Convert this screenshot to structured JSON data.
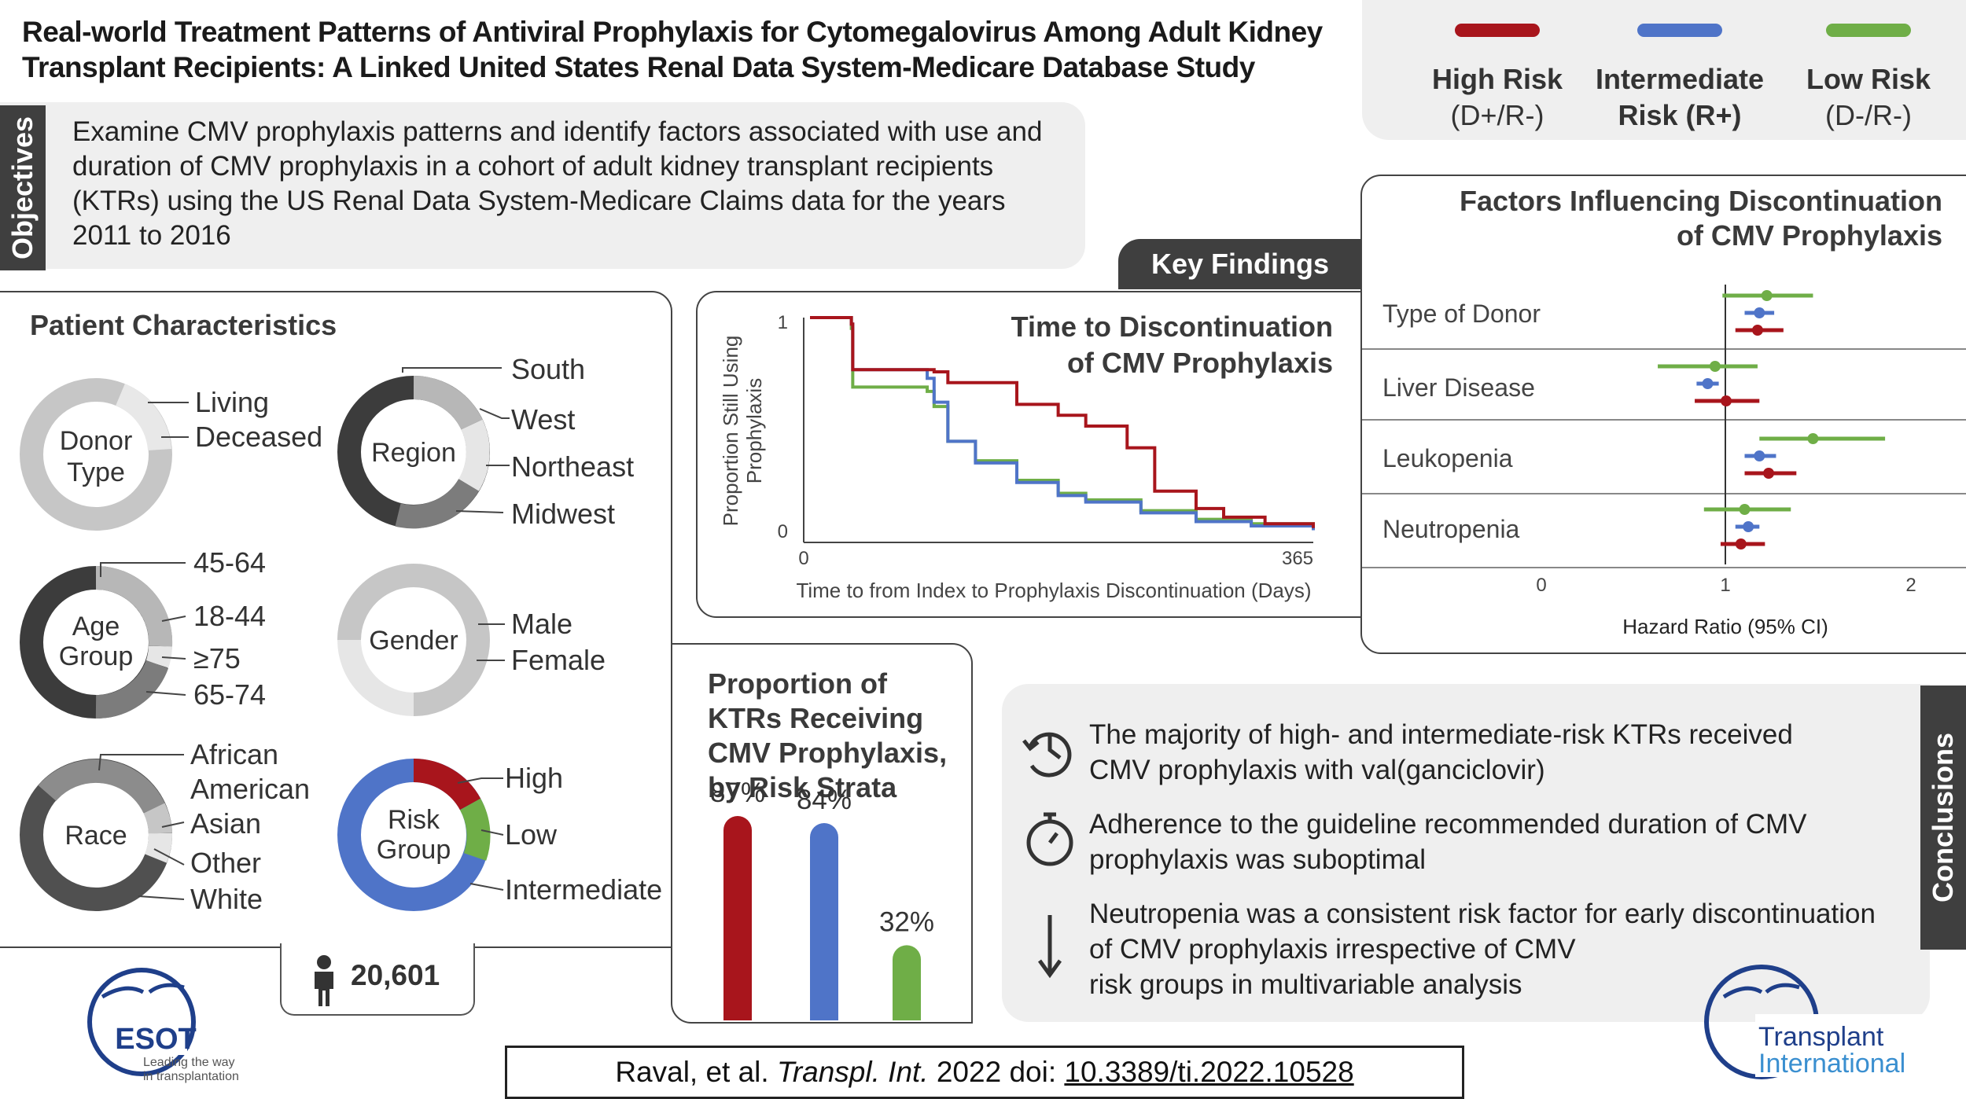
{
  "title_line1": "Real-world Treatment Patterns of Antiviral Prophylaxis for Cytomegalovirus Among Adult Kidney",
  "title_line2": "Transplant Recipients: A Linked United States Renal Data System-Medicare Database Study",
  "objectives": {
    "tab_label": "Objectives",
    "text": "Examine CMV prophylaxis patterns and identify factors associated with use and duration of CMV prophylaxis in a cohort of adult kidney transplant recipients (KTRs) using the US Renal Data System-Medicare Claims data for the years 2011 to 2016"
  },
  "legend": [
    {
      "line1": "High Risk",
      "line2": "(D+/R-)",
      "color": "#a8151c"
    },
    {
      "line1": "Intermediate",
      "line2": "Risk (R+)",
      "color": "#4f74c8"
    },
    {
      "line1": "Low Risk",
      "line2": "(D-/R-)",
      "color": "#6fae47"
    }
  ],
  "patient_characteristics": {
    "title": "Patient Characteristics",
    "donor_type": {
      "label1": "Donor",
      "label2": "Type",
      "categories": [
        "Living",
        "Deceased"
      ]
    },
    "region": {
      "label": "Region",
      "categories": [
        "South",
        "West",
        "Northeast",
        "Midwest"
      ]
    },
    "age_group": {
      "label1": "Age",
      "label2": "Group",
      "categories": [
        "45-64",
        "18-44",
        "≥75",
        "65-74"
      ]
    },
    "gender": {
      "label": "Gender",
      "categories": [
        "Male",
        "Female"
      ]
    },
    "race": {
      "label": "Race",
      "categories": [
        "African",
        "American",
        "Asian",
        "Other",
        "White"
      ]
    },
    "risk_group": {
      "label1": "Risk",
      "label2": "Group",
      "categories": [
        "High",
        "Low",
        "Intermediate"
      ]
    },
    "n": "20,601"
  },
  "key_findings": "Key Findings",
  "km_chart": {
    "title_line1": "Time to Discontinuation",
    "title_line2": "of CMV Prophylaxis",
    "ylabel_line1": "Proportion Still Using",
    "ylabel_line2": "Prophylaxis",
    "xlabel": "Time to from Index to Prophylaxis Discontinuation (Days)",
    "ytick_top": "1",
    "ytick_bottom": "0",
    "xtick_left": "0",
    "xtick_right": "365"
  },
  "forest": {
    "title_line1": "Factors Influencing Discontinuation",
    "title_line2": "of CMV Prophylaxis",
    "xlabel": "Hazard Ratio (95% CI)",
    "ticks": [
      "0",
      "1",
      "2"
    ],
    "factors": [
      "Type of Donor",
      "Liver Disease",
      "Leukopenia",
      "Neutropenia"
    ]
  },
  "proportion": {
    "title_line1": "Proportion of",
    "title_line2": "KTRs Receiving",
    "title_line3": "CMV Prophylaxis,",
    "title_line4": "by Risk Strata",
    "labels": [
      "87%",
      "84%",
      "32%"
    ]
  },
  "conclusions": {
    "tab_label": "Conclusions",
    "items": [
      {
        "line1": "The majority of high- and intermediate-risk KTRs received",
        "line2": "CMV prophylaxis with val(ganciclovir)",
        "line3": ""
      },
      {
        "line1": "Adherence to the guideline recommended duration of CMV",
        "line2": "prophylaxis was suboptimal",
        "line3": ""
      },
      {
        "line1": "Neutropenia was a consistent risk factor for early discontinuation",
        "line2": "of CMV prophylaxis irrespective of CMV",
        "line3": "risk groups in multivariable analysis"
      }
    ]
  },
  "logos": {
    "esot": "ESOT",
    "esot_tag1": "Leading the way",
    "esot_tag2": "in transplantation",
    "ti_line1": "Transplant",
    "ti_line2": "International"
  },
  "citation": {
    "authors": "Raval, et al.",
    "journal": "Transpl. Int.",
    "year_doi": "2022 doi:",
    "doi": "10.3389/ti.2022.10528"
  },
  "chart_data": [
    {
      "type": "line",
      "title": "Time to Discontinuation of CMV Prophylaxis",
      "xlabel": "Time to from Index to Prophylaxis Discontinuation (Days)",
      "ylabel": "Proportion Still Using Prophylaxis",
      "xlim": [
        0,
        365
      ],
      "ylim": [
        0,
        1
      ],
      "series": [
        {
          "name": "High Risk (D+/R-)",
          "color": "#a8151c",
          "x": [
            0,
            30,
            31,
            90,
            100,
            150,
            180,
            200,
            230,
            250,
            280,
            300,
            330,
            365
          ],
          "y": [
            1,
            0.97,
            0.76,
            0.75,
            0.7,
            0.6,
            0.55,
            0.5,
            0.4,
            0.2,
            0.12,
            0.08,
            0.05,
            0.03
          ]
        },
        {
          "name": "Intermediate Risk (R+)",
          "color": "#4f74c8",
          "x": [
            0,
            30,
            31,
            85,
            90,
            100,
            120,
            150,
            180,
            200,
            240,
            280,
            320,
            365
          ],
          "y": [
            1,
            0.97,
            0.76,
            0.72,
            0.61,
            0.43,
            0.33,
            0.24,
            0.18,
            0.15,
            0.1,
            0.06,
            0.04,
            0.02
          ]
        },
        {
          "name": "Low Risk (D-/R-)",
          "color": "#6fae47",
          "x": [
            0,
            30,
            31,
            85,
            90,
            100,
            120,
            150,
            180,
            200,
            240,
            280,
            320,
            365
          ],
          "y": [
            1,
            0.95,
            0.68,
            0.66,
            0.59,
            0.43,
            0.34,
            0.25,
            0.19,
            0.16,
            0.11,
            0.07,
            0.05,
            0.03
          ]
        }
      ]
    },
    {
      "type": "scatter",
      "title": "Factors Influencing Discontinuation of CMV Prophylaxis",
      "xlabel": "Hazard Ratio (95% CI)",
      "xlim": [
        0,
        2
      ],
      "reference_line": 1,
      "categories": [
        "Type of Donor",
        "Liver Disease",
        "Leukopenia",
        "Neutropenia"
      ],
      "series": [
        {
          "name": "Low Risk (D-/R-)",
          "color": "#6fae47",
          "hr": [
            1.22,
            0.94,
            1.47,
            1.1
          ],
          "lo": [
            0.98,
            0.63,
            1.18,
            0.88
          ],
          "hi": [
            1.47,
            1.17,
            1.86,
            1.35
          ]
        },
        {
          "name": "Intermediate Risk (R+)",
          "color": "#4f74c8",
          "hr": [
            1.18,
            0.9,
            1.18,
            1.12
          ],
          "lo": [
            1.1,
            0.84,
            1.1,
            1.05
          ],
          "hi": [
            1.26,
            0.96,
            1.27,
            1.18
          ]
        },
        {
          "name": "High Risk (D+/R-)",
          "color": "#a8151c",
          "hr": [
            1.17,
            1.0,
            1.23,
            1.08
          ],
          "lo": [
            1.05,
            0.83,
            1.1,
            0.97
          ],
          "hi": [
            1.31,
            1.18,
            1.38,
            1.21
          ]
        }
      ]
    },
    {
      "type": "bar",
      "title": "Proportion of KTRs Receiving CMV Prophylaxis, by Risk Strata",
      "categories": [
        "High Risk (D+/R-)",
        "Intermediate Risk (R+)",
        "Low Risk (D-/R-)"
      ],
      "values": [
        87,
        84,
        32
      ],
      "colors": [
        "#a8151c",
        "#4f74c8",
        "#6fae47"
      ],
      "ylim": [
        0,
        100
      ]
    }
  ]
}
